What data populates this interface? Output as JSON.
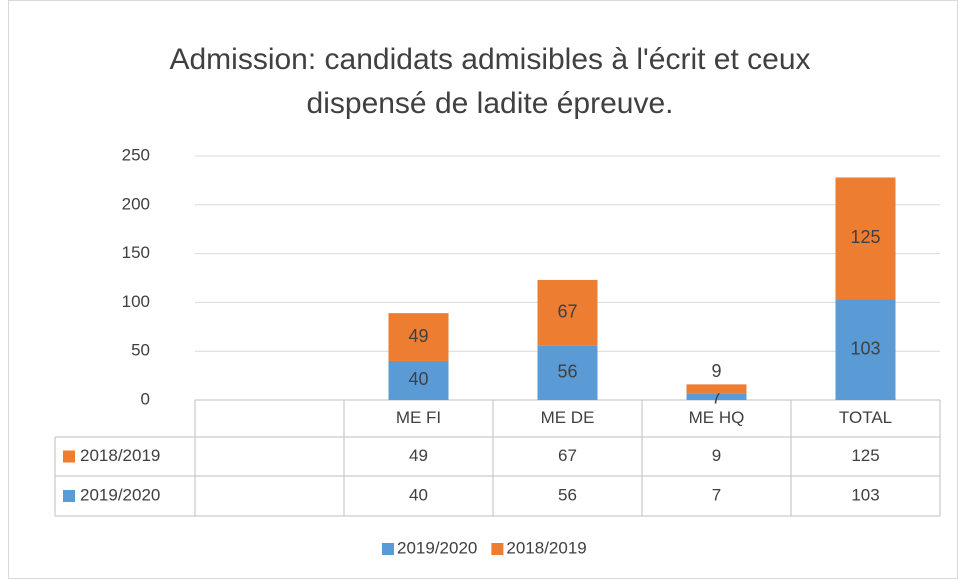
{
  "chart_data": {
    "type": "bar",
    "stacked": true,
    "title": "Admission: candidats admisibles à l'écrit et ceux dispensé de ladite épreuve.",
    "categories": [
      null,
      "ME FI",
      "ME DE",
      "ME HQ",
      "TOTAL"
    ],
    "series": [
      {
        "name": "2019/2020",
        "color": "#5b9bd5",
        "values": [
          null,
          40,
          56,
          7,
          103
        ]
      },
      {
        "name": "2018/2019",
        "color": "#ed7d31",
        "values": [
          null,
          49,
          67,
          9,
          125
        ]
      }
    ],
    "ylim": [
      0,
      250
    ],
    "yticks": [
      0,
      50,
      100,
      150,
      200,
      250
    ],
    "grid": true,
    "legend": "bottom",
    "data_table": true
  }
}
